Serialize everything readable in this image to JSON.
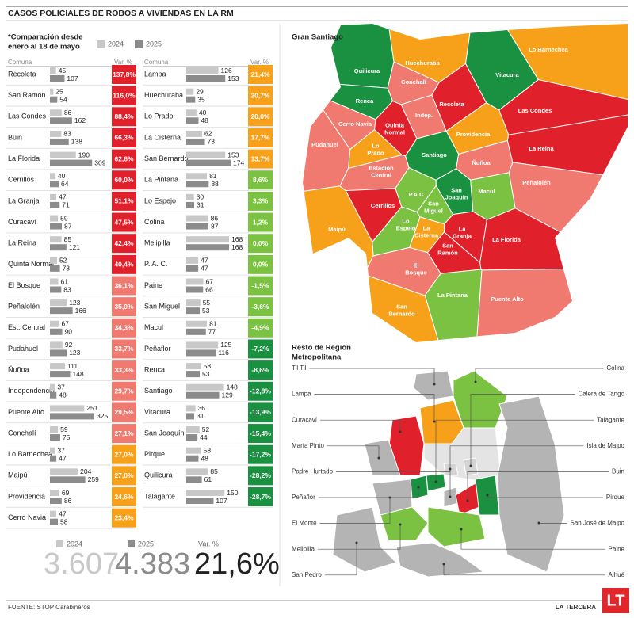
{
  "header": {
    "title": "CASOS POLICIALES DE ROBOS A VIVIENDAS EN LA RM",
    "note": [
      "*Comparación desde",
      "enero al 18 de mayo"
    ],
    "legend": [
      {
        "label": "2024",
        "color": "#c8c8c8"
      },
      {
        "label": "2025",
        "color": "#8c8c8c"
      }
    ]
  },
  "table": {
    "columns": [
      {
        "headers": [
          "Comuna",
          "Var. %"
        ],
        "rows": [
          {
            "comuna": "Recoleta",
            "values": [
              45,
              107
            ],
            "var": "137,8%",
            "color": "#e0202a"
          },
          {
            "comuna": "San Ramón",
            "values": [
              25,
              54
            ],
            "var": "116,0%",
            "color": "#e0202a"
          },
          {
            "comuna": "Las Condes",
            "values": [
              86,
              162
            ],
            "var": "88,4%",
            "color": "#e0202a"
          },
          {
            "comuna": "Buin",
            "values": [
              83,
              138
            ],
            "var": "66,3%",
            "color": "#e0202a"
          },
          {
            "comuna": "La Florida",
            "values": [
              190,
              309
            ],
            "var": "62,6%",
            "color": "#e0202a"
          },
          {
            "comuna": "Cerrillos",
            "values": [
              40,
              64
            ],
            "var": "60,0%",
            "color": "#e0202a"
          },
          {
            "comuna": "La Granja",
            "values": [
              47,
              71
            ],
            "var": "51,1%",
            "color": "#e0202a"
          },
          {
            "comuna": "Curacaví",
            "values": [
              59,
              87
            ],
            "var": "47,5%",
            "color": "#e0202a"
          },
          {
            "comuna": "La Reina",
            "values": [
              85,
              121
            ],
            "var": "42,4%",
            "color": "#e0202a"
          },
          {
            "comuna": "Quinta Normal",
            "values": [
              52,
              73
            ],
            "var": "40,4%",
            "color": "#e0202a"
          },
          {
            "comuna": "El Bosque",
            "values": [
              61,
              83
            ],
            "var": "36,1%",
            "color": "#f07a70"
          },
          {
            "comuna": "Peñalolén",
            "values": [
              123,
              166
            ],
            "var": "35,0%",
            "color": "#f07a70"
          },
          {
            "comuna": "Est. Central",
            "values": [
              67,
              90
            ],
            "var": "34,3%",
            "color": "#f07a70"
          },
          {
            "comuna": "Pudahuel",
            "values": [
              92,
              123
            ],
            "var": "33,7%",
            "color": "#f07a70"
          },
          {
            "comuna": "Ñuñoa",
            "values": [
              111,
              148
            ],
            "var": "33,3%",
            "color": "#f07a70"
          },
          {
            "comuna": "Independencia",
            "values": [
              37,
              48
            ],
            "var": "29,7%",
            "color": "#f07a70"
          },
          {
            "comuna": "Puente Alto",
            "values": [
              251,
              325
            ],
            "var": "29,5%",
            "color": "#f07a70"
          },
          {
            "comuna": "Conchalí",
            "values": [
              59,
              75
            ],
            "var": "27,1%",
            "color": "#f07a70"
          },
          {
            "comuna": "Lo Barnechea",
            "values": [
              37,
              47
            ],
            "var": "27,0%",
            "color": "#f7a11a"
          },
          {
            "comuna": "Maipú",
            "values": [
              204,
              259
            ],
            "var": "27,0%",
            "color": "#f7a11a"
          },
          {
            "comuna": "Providencia",
            "values": [
              69,
              86
            ],
            "var": "24,6%",
            "color": "#f7a11a"
          },
          {
            "comuna": "Cerro Navia",
            "values": [
              47,
              58
            ],
            "var": "23,4%",
            "color": "#f7a11a"
          }
        ]
      },
      {
        "headers": [
          "Comuna",
          "Var. %"
        ],
        "rows": [
          {
            "comuna": "Lampa",
            "values": [
              126,
              153
            ],
            "var": "21,4%",
            "color": "#f7a11a"
          },
          {
            "comuna": "Huechuraba",
            "values": [
              29,
              35
            ],
            "var": "20,7%",
            "color": "#f7a11a"
          },
          {
            "comuna": "Lo Prado",
            "values": [
              40,
              48
            ],
            "var": "20,0%",
            "color": "#f7a11a"
          },
          {
            "comuna": "La Cisterna",
            "values": [
              62,
              73
            ],
            "var": "17,7%",
            "color": "#f7a11a"
          },
          {
            "comuna": "San Bernardo",
            "values": [
              153,
              174
            ],
            "var": "13,7%",
            "color": "#f7a11a"
          },
          {
            "comuna": "La Pintana",
            "values": [
              81,
              88
            ],
            "var": "8,6%",
            "color": "#7cc242"
          },
          {
            "comuna": "Lo Espejo",
            "values": [
              30,
              31
            ],
            "var": "3,3%",
            "color": "#7cc242"
          },
          {
            "comuna": "Colina",
            "values": [
              86,
              87
            ],
            "var": "1,2%",
            "color": "#7cc242"
          },
          {
            "comuna": "Melipilla",
            "values": [
              168,
              168
            ],
            "var": "0,0%",
            "color": "#7cc242"
          },
          {
            "comuna": "P. A. C.",
            "values": [
              47,
              47
            ],
            "var": "0,0%",
            "color": "#7cc242"
          },
          {
            "comuna": "Paine",
            "values": [
              67,
              66
            ],
            "var": "-1,5%",
            "color": "#7cc242"
          },
          {
            "comuna": "San Miguel",
            "values": [
              55,
              53
            ],
            "var": "-3,6%",
            "color": "#7cc242"
          },
          {
            "comuna": "Macul",
            "values": [
              81,
              77
            ],
            "var": "-4,9%",
            "color": "#7cc242"
          },
          {
            "comuna": "Peñaflor",
            "values": [
              125,
              116
            ],
            "var": "-7,2%",
            "color": "#1a9140"
          },
          {
            "comuna": "Renca",
            "values": [
              58,
              53
            ],
            "var": "-8,6%",
            "color": "#1a9140"
          },
          {
            "comuna": "Santiago",
            "values": [
              148,
              129
            ],
            "var": "-12,8%",
            "color": "#1a9140"
          },
          {
            "comuna": "Vitacura",
            "values": [
              36,
              31
            ],
            "var": "-13,9%",
            "color": "#1a9140"
          },
          {
            "comuna": "San Joaquín",
            "values": [
              52,
              44
            ],
            "var": "-15,4%",
            "color": "#1a9140"
          },
          {
            "comuna": "Pirque",
            "values": [
              58,
              48
            ],
            "var": "-17,2%",
            "color": "#1a9140"
          },
          {
            "comuna": "Quilicura",
            "values": [
              85,
              61
            ],
            "var": "-28,2%",
            "color": "#1a9140"
          },
          {
            "comuna": "Talagante",
            "values": [
              150,
              107
            ],
            "var": "-28,7%",
            "color": "#1a9140"
          }
        ]
      }
    ]
  },
  "totals": {
    "items": [
      {
        "label": "2024",
        "value": "3.607"
      },
      {
        "label": "2025",
        "value": "4.383"
      },
      {
        "label": "Var. %",
        "value": "21,6%"
      }
    ]
  },
  "gran_santiago": {
    "title": "Gran Santiago",
    "comunas": [
      {
        "label": [
          "Quilicura"
        ],
        "color": "#1a9140"
      },
      {
        "label": [
          "Huechuraba"
        ],
        "color": "#f7a11a"
      },
      {
        "label": [
          "Lo Barnechea"
        ],
        "color": "#f7a11a"
      },
      {
        "label": [
          "Vitacura"
        ],
        "color": "#1a9140"
      },
      {
        "label": [
          "Conchalí"
        ],
        "color": "#f07a70"
      },
      {
        "label": [
          "Renca"
        ],
        "color": "#1a9140"
      },
      {
        "label": [
          "Recoleta"
        ],
        "color": "#e0202a"
      },
      {
        "label": [
          "Indep."
        ],
        "color": "#f07a70"
      },
      {
        "label": [
          "Cerro Navia"
        ],
        "color": "#f07a70"
      },
      {
        "label": [
          "Quinta",
          "Normal"
        ],
        "color": "#e0202a"
      },
      {
        "label": [
          "Providencia"
        ],
        "color": "#f7a11a"
      },
      {
        "label": [
          "Las Condes"
        ],
        "color": "#e0202a"
      },
      {
        "label": [
          "Pudahuel"
        ],
        "color": "#f07a70"
      },
      {
        "label": [
          "Lo",
          "Prado"
        ],
        "color": "#f7a11a"
      },
      {
        "label": [
          "Ñuñoa"
        ],
        "color": "#f07a70"
      },
      {
        "label": [
          "La Reina"
        ],
        "color": "#e0202a"
      },
      {
        "label": [
          "Santiago"
        ],
        "color": "#1a9140"
      },
      {
        "label": [
          "Estación",
          "Central"
        ],
        "color": "#f07a70"
      },
      {
        "label": [
          "Peñalolén"
        ],
        "color": "#f07a70"
      },
      {
        "label": [
          "P.A.C"
        ],
        "color": "#7cc242"
      },
      {
        "label": [
          "San",
          "Joaquín"
        ],
        "color": "#1a9140"
      },
      {
        "label": [
          "Macul"
        ],
        "color": "#7cc242"
      },
      {
        "label": [
          "San",
          "Miguel"
        ],
        "color": "#7cc242"
      },
      {
        "label": [
          "Cerrillos"
        ],
        "color": "#e0202a"
      },
      {
        "label": [
          "Lo",
          "Espejo"
        ],
        "color": "#7cc242"
      },
      {
        "label": [
          "La",
          "Cisterna"
        ],
        "color": "#f7a11a"
      },
      {
        "label": [
          "La",
          "Granja"
        ],
        "color": "#e0202a"
      },
      {
        "label": [
          "San",
          "Ramón"
        ],
        "color": "#e0202a"
      },
      {
        "label": [
          "La Florida"
        ],
        "color": "#e0202a"
      },
      {
        "label": [
          "Maipú"
        ],
        "color": "#f7a11a"
      },
      {
        "label": [
          "El",
          "Bosque"
        ],
        "color": "#f07a70"
      },
      {
        "label": [
          "La Pintana"
        ],
        "color": "#7cc242"
      },
      {
        "label": [
          "San",
          "Bernardo"
        ],
        "color": "#f7a11a"
      },
      {
        "label": [
          "Puente Alto"
        ],
        "color": "#f07a70"
      }
    ]
  },
  "resto": {
    "title": [
      "Resto de Región",
      "Metropolitana"
    ],
    "comunas": [
      {
        "label": "Til Til",
        "color": "#b4b4b4"
      },
      {
        "label": "Colina",
        "color": "#7cc242"
      },
      {
        "label": "Lampa",
        "color": "#f7a11a"
      },
      {
        "label": "Calera de Tango",
        "color": "#d4d4d4"
      },
      {
        "label": "Curacaví",
        "color": "#e0202a"
      },
      {
        "label": "Talagante",
        "color": "#1a9140"
      },
      {
        "label": "María Pinto",
        "color": "#b4b4b4"
      },
      {
        "label": "Isla de Maipo",
        "color": "#b4b4b4"
      },
      {
        "label": "Padre Hurtado",
        "color": "#d4d4d4"
      },
      {
        "label": "Buin",
        "color": "#e0202a"
      },
      {
        "label": "Peñaflor",
        "color": "#1a9140"
      },
      {
        "label": "Pirque",
        "color": "#1a9140"
      },
      {
        "label": "El Monte",
        "color": "#b4b4b4"
      },
      {
        "label": "San José de Maipo",
        "color": "#b4b4b4"
      },
      {
        "label": "Melipilla",
        "color": "#7cc242"
      },
      {
        "label": "Paine",
        "color": "#7cc242"
      },
      {
        "label": "San Pedro",
        "color": "#b4b4b4"
      },
      {
        "label": "Alhué",
        "color": "#b4b4b4"
      }
    ]
  },
  "footer": {
    "source": "FUENTE: STOP Carabineros",
    "brand": "LA TERCERA",
    "logo": "LT"
  }
}
